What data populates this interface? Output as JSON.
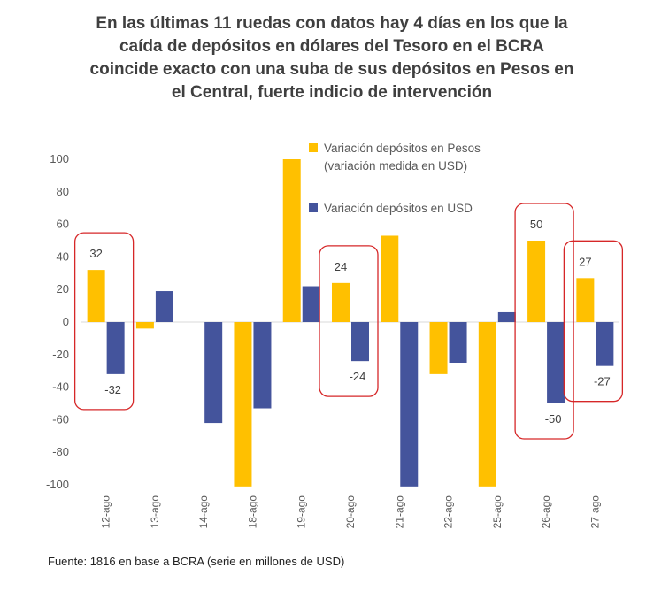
{
  "title": "En las últimas 11 ruedas con datos hay 4 días en los que la caída de depósitos en dólares del Tesoro en el BCRA coincide exacto con una suba de sus depósitos en Pesos en el Central, fuerte indicio de intervención",
  "source": "Fuente: 1816 en base a BCRA (serie en millones de USD)",
  "colors": {
    "pesos": "#FFC000",
    "usd": "#44549C",
    "highlight": "#D62728",
    "zero_line": "#D9D9D9"
  },
  "chart_data": {
    "type": "bar",
    "categories": [
      "12-ago",
      "13-ago",
      "14-ago",
      "18-ago",
      "19-ago",
      "20-ago",
      "21-ago",
      "22-ago",
      "25-ago",
      "26-ago",
      "27-ago"
    ],
    "series": [
      {
        "name": "Variación depósitos en Pesos (variación medida en USD)",
        "legend_lines": [
          "Variación depósitos en Pesos",
          "(variación medida en USD)"
        ],
        "values": [
          32,
          -4,
          0,
          -101,
          100,
          24,
          53,
          -32,
          -101,
          50,
          27
        ]
      },
      {
        "name": "Variación depósitos en USD",
        "legend_lines": [
          "Variación depósitos en USD"
        ],
        "values": [
          -32,
          19,
          -62,
          -53,
          22,
          -24,
          -101,
          -25,
          6,
          -50,
          -27
        ]
      }
    ],
    "yticks": [
      100,
      80,
      60,
      40,
      20,
      0,
      -20,
      -40,
      -60,
      -80,
      -100
    ],
    "ylim": [
      -100,
      100
    ],
    "xlabel": "",
    "ylabel": "",
    "grid": false,
    "legend_position": "top-center",
    "highlighted_categories": [
      "12-ago",
      "20-ago",
      "26-ago",
      "27-ago"
    ],
    "data_labels": [
      {
        "category": "12-ago",
        "pesos": "32",
        "usd": "-32"
      },
      {
        "category": "20-ago",
        "pesos": "24",
        "usd": "-24"
      },
      {
        "category": "26-ago",
        "pesos": "50",
        "usd": "-50"
      },
      {
        "category": "27-ago",
        "pesos": "27",
        "usd": "-27"
      }
    ]
  }
}
